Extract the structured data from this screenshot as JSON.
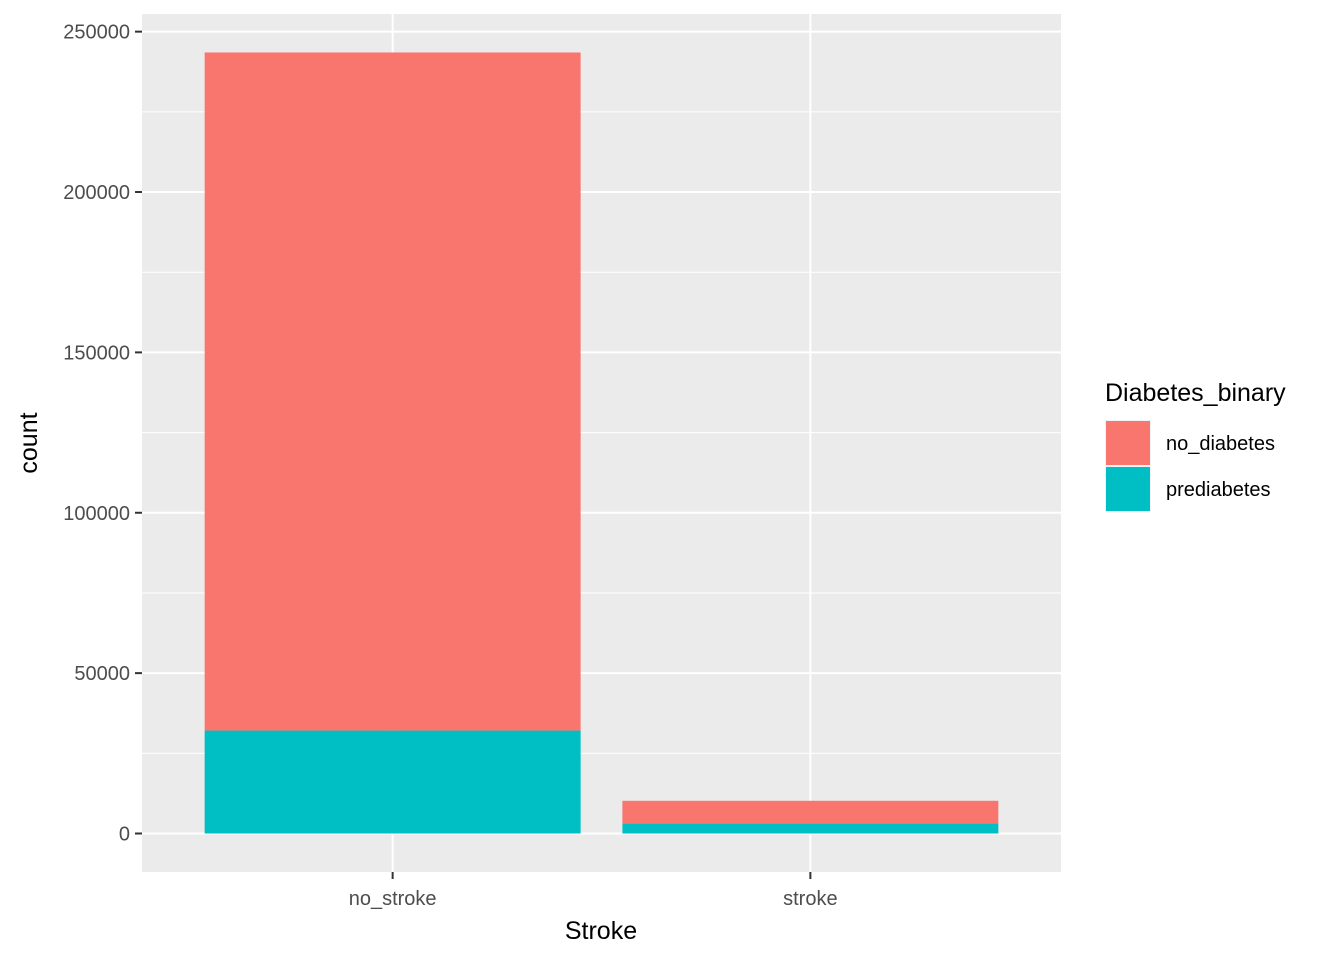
{
  "chart_data": {
    "type": "bar",
    "stacked": true,
    "xlabel": "Stroke",
    "ylabel": "count",
    "categories": [
      "no_stroke",
      "stroke"
    ],
    "series": [
      {
        "name": "no_diabetes",
        "color": "#F8766D",
        "values": [
          211400,
          7000
        ]
      },
      {
        "name": "prediabetes",
        "color": "#00BFC4",
        "values": [
          32100,
          3200
        ]
      }
    ],
    "ylim": [
      -12000,
      255500
    ],
    "yticks": [
      0,
      50000,
      100000,
      150000,
      200000,
      250000
    ],
    "ytick_labels": [
      "0",
      "50000",
      "100000",
      "150000",
      "200000",
      "250000"
    ],
    "grid": true,
    "panel_background": "#EBEBEB",
    "gridline_color": "#FFFFFF",
    "legend": {
      "title": "Diabetes_binary",
      "placement": "right",
      "entries": [
        "no_diabetes",
        "prediabetes"
      ]
    }
  }
}
